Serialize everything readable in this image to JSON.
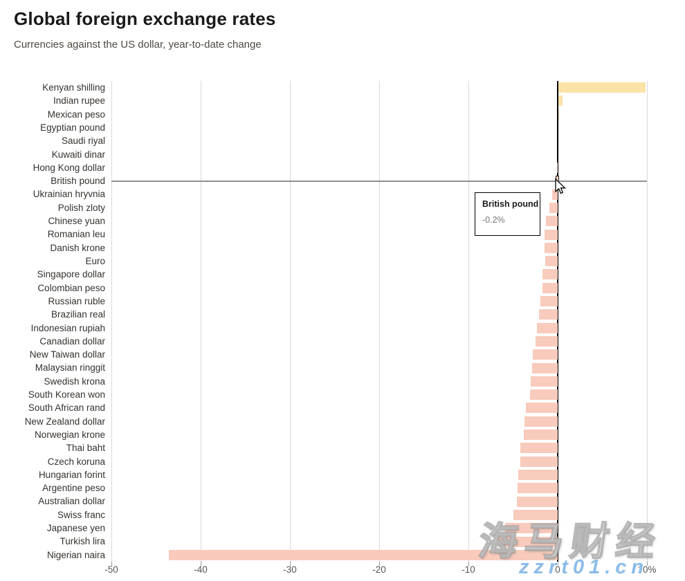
{
  "header": {
    "title": "Global foreign exchange rates",
    "subtitle": "Currencies against the US dollar, year-to-date change"
  },
  "chart_data": {
    "type": "bar",
    "orientation": "horizontal",
    "unit": "%",
    "title": "Global foreign exchange rates",
    "subtitle": "Currencies against the US dollar, year-to-date change",
    "xlim": [
      -50,
      10
    ],
    "xtick_values": [
      -50,
      -40,
      -30,
      -20,
      -10,
      0,
      10
    ],
    "xtick_labels": [
      "-50",
      "-40",
      "-30",
      "-20",
      "-10",
      "0",
      "10%"
    ],
    "grid": true,
    "legend": "none",
    "categories": [
      "Kenyan shilling",
      "Indian rupee",
      "Mexican peso",
      "Egyptian pound",
      "Saudi riyal",
      "Kuwaiti dinar",
      "Hong Kong dollar",
      "British pound",
      "Ukrainian hryvnia",
      "Polish zloty",
      "Chinese yuan",
      "Romanian leu",
      "Danish krone",
      "Euro",
      "Singapore dollar",
      "Colombian peso",
      "Russian ruble",
      "Brazilian real",
      "Indonesian rupiah",
      "Canadian dollar",
      "New Taiwan dollar",
      "Malaysian ringgit",
      "Swedish krona",
      "South Korean won",
      "South African rand",
      "New Zealand dollar",
      "Norwegian krone",
      "Thai baht",
      "Czech koruna",
      "Hungarian forint",
      "Argentine peso",
      "Australian dollar",
      "Swiss franc",
      "Japanese yen",
      "Turkish lira",
      "Nigerian naira"
    ],
    "values": [
      9.8,
      0.5,
      0.1,
      0.0,
      0.0,
      0.0,
      -0.1,
      -0.2,
      -0.6,
      -0.9,
      -1.3,
      -1.5,
      -1.5,
      -1.4,
      -1.7,
      -1.7,
      -1.9,
      -2.1,
      -2.3,
      -2.5,
      -2.8,
      -2.9,
      -3.0,
      -3.1,
      -3.6,
      -3.7,
      -3.8,
      -4.2,
      -4.2,
      -4.4,
      -4.5,
      -4.6,
      -5.0,
      -5.9,
      -6.7,
      -43.6
    ],
    "positive_color": "#fbe3a8",
    "negative_color": "#f8cbbc",
    "highlighted_category": "British pound"
  },
  "tooltip": {
    "title": "British pound",
    "value": "-0.2%"
  },
  "watermarks": {
    "cjk": "海马财经",
    "site": "zzrt01.cn"
  }
}
